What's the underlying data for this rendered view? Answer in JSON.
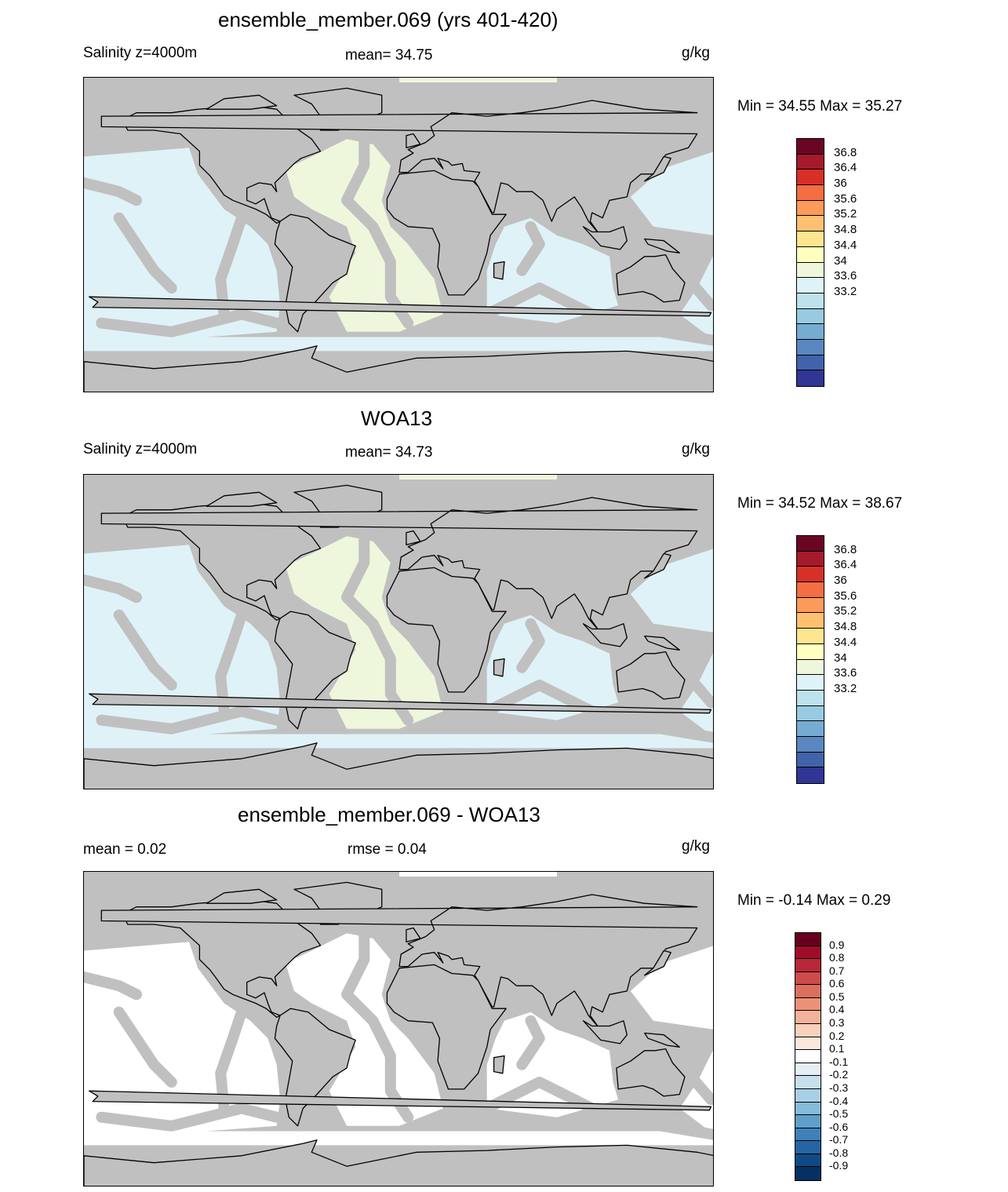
{
  "panels": [
    {
      "title": "ensemble_member.069 (yrs 401-420)",
      "left_label": "Salinity z=4000m",
      "center_label": "mean=  34.75",
      "units": "g/kg",
      "minmax": "Min =  34.55 Max =  35.27"
    },
    {
      "title": "WOA13",
      "left_label": "Salinity z=4000m",
      "center_label": "mean=  34.73",
      "units": "g/kg",
      "minmax": "Min =  34.52 Max =  38.67"
    },
    {
      "title": "ensemble_member.069 - WOA13",
      "left_label": "mean =   0.02",
      "center_label": "rmse =   0.04",
      "units": "g/kg",
      "minmax": "Min =  -0.14 Max =   0.29"
    }
  ],
  "colorbars": {
    "salinity": {
      "labels": [
        "36.8",
        "36.4",
        "36",
        "35.6",
        "35.2",
        "34.8",
        "34.4",
        "34",
        "33.6",
        "33.2"
      ],
      "colors": [
        "#6a0624",
        "#a51a2c",
        "#d73027",
        "#f46d43",
        "#fb9a59",
        "#fdc070",
        "#fee590",
        "#ffffbf",
        "#eef7dc",
        "#dff2f8",
        "#bde2ee",
        "#98cbe0",
        "#75acd2",
        "#5a87c0",
        "#4163aa",
        "#313695"
      ]
    },
    "difference": {
      "labels": [
        "0.9",
        "0.8",
        "0.7",
        "0.6",
        "0.5",
        "0.4",
        "0.3",
        "0.2",
        "0.1",
        "-0.1",
        "-0.2",
        "-0.3",
        "-0.4",
        "-0.5",
        "-0.6",
        "-0.7",
        "-0.8",
        "-0.9"
      ],
      "colors": [
        "#67001f",
        "#9e0e28",
        "#b8283a",
        "#cc4c4b",
        "#db6f5d",
        "#ea9178",
        "#f3b39a",
        "#f9d0bb",
        "#fde7dc",
        "#ffffff",
        "#e4eef5",
        "#c8dfec",
        "#a8cfe4",
        "#86bbda",
        "#5f9fca",
        "#3e81b9",
        "#2565a4",
        "#104a85",
        "#053061"
      ]
    }
  },
  "map_colors": {
    "land": "#c0c0c0",
    "ocean_model": "#dff2f8",
    "atlantic_model": "#eef7dc",
    "ocean_obs": "#dff2f8",
    "atlantic_obs": "#eef7dc",
    "ocean_diff": "#ffffff"
  }
}
